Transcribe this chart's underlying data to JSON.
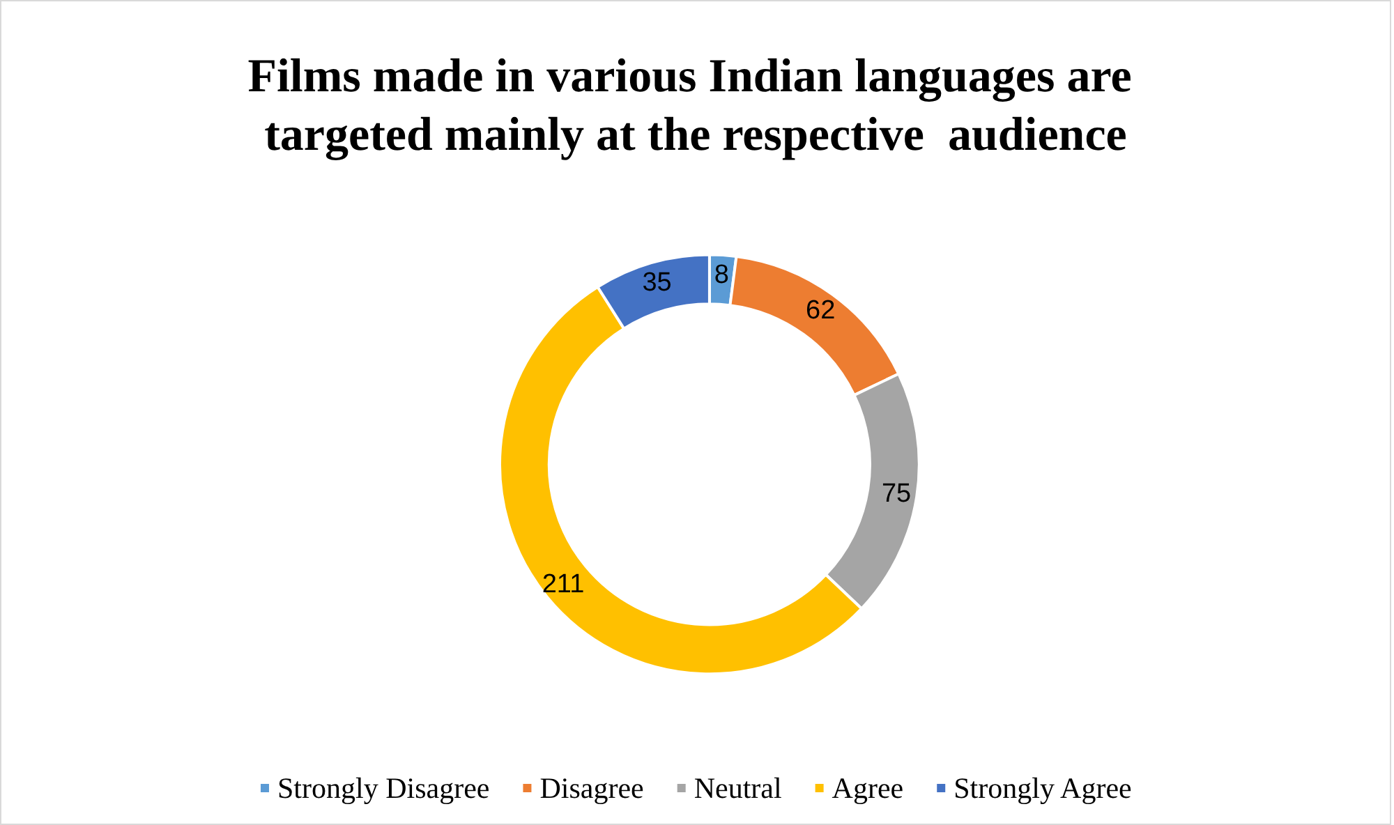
{
  "chart_data": {
    "type": "donut",
    "title": "Films made in various Indian languages are targeted mainly at the respective  audience",
    "categories": [
      "Strongly Disagree",
      "Disagree",
      "Neutral",
      "Agree",
      "Strongly Agree"
    ],
    "values": [
      8,
      62,
      75,
      211,
      35
    ],
    "colors": [
      "#5b9bd5",
      "#ed7d31",
      "#a5a5a5",
      "#ffc000",
      "#4472c4"
    ],
    "data_labels": true,
    "legend": "bottom"
  }
}
